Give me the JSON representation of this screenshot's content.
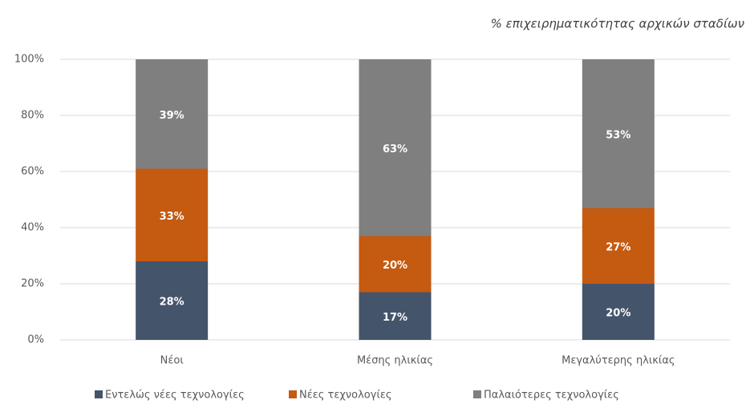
{
  "chart_data": {
    "type": "stacked_bar",
    "title": "% επιχειρηματικότητας αρχικών σταδίων",
    "categories": [
      "Νέοι",
      "Μέσης ηλικίας",
      "Μεγαλύτερης ηλικίας"
    ],
    "series": [
      {
        "name": "Εντελώς νέες τεχνολογίες",
        "color": "#44546a",
        "values": [
          28,
          17,
          20
        ],
        "value_labels": [
          "28%",
          "17%",
          "20%"
        ]
      },
      {
        "name": "Νέες τεχνολογίες",
        "color": "#c55a11",
        "values": [
          33,
          20,
          27
        ],
        "value_labels": [
          "33%",
          "20%",
          "27%"
        ]
      },
      {
        "name": "Παλαιότερες τεχνολογίες",
        "color": "#7f7f7f",
        "values": [
          39,
          63,
          53
        ],
        "value_labels": [
          "39%",
          "63%",
          "53%"
        ]
      }
    ],
    "ylim": [
      0,
      100
    ],
    "yticks": [
      {
        "value": 0,
        "label": "0%"
      },
      {
        "value": 20,
        "label": "20%"
      },
      {
        "value": 40,
        "label": "40%"
      },
      {
        "value": 60,
        "label": "60%"
      },
      {
        "value": 80,
        "label": "80%"
      },
      {
        "value": 100,
        "label": "100%"
      }
    ],
    "grid": true,
    "legend": "bottom"
  }
}
